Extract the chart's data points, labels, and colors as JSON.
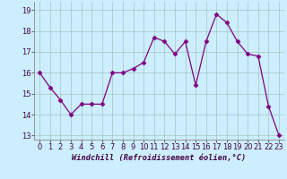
{
  "x": [
    0,
    1,
    2,
    3,
    4,
    5,
    6,
    7,
    8,
    9,
    10,
    11,
    12,
    13,
    14,
    15,
    16,
    17,
    18,
    19,
    20,
    21,
    22,
    23
  ],
  "y": [
    16.0,
    15.3,
    14.7,
    14.0,
    14.5,
    14.5,
    14.5,
    16.0,
    16.0,
    16.2,
    16.5,
    17.7,
    17.5,
    16.9,
    17.5,
    15.4,
    17.5,
    18.8,
    18.4,
    17.5,
    16.9,
    16.8,
    14.4,
    13.0
  ],
  "line_color": "#800080",
  "marker": "D",
  "marker_size": 2.5,
  "bg_color": "#cceeff",
  "grid_color": "#aacccc",
  "xlabel": "Windchill (Refroidissement éolien,°C)",
  "ylim": [
    12.8,
    19.4
  ],
  "xlim": [
    -0.5,
    23.5
  ],
  "yticks": [
    13,
    14,
    15,
    16,
    17,
    18,
    19
  ],
  "xticks": [
    0,
    1,
    2,
    3,
    4,
    5,
    6,
    7,
    8,
    9,
    10,
    11,
    12,
    13,
    14,
    15,
    16,
    17,
    18,
    19,
    20,
    21,
    22,
    23
  ],
  "tick_fontsize": 6.0,
  "xlabel_fontsize": 6.2
}
